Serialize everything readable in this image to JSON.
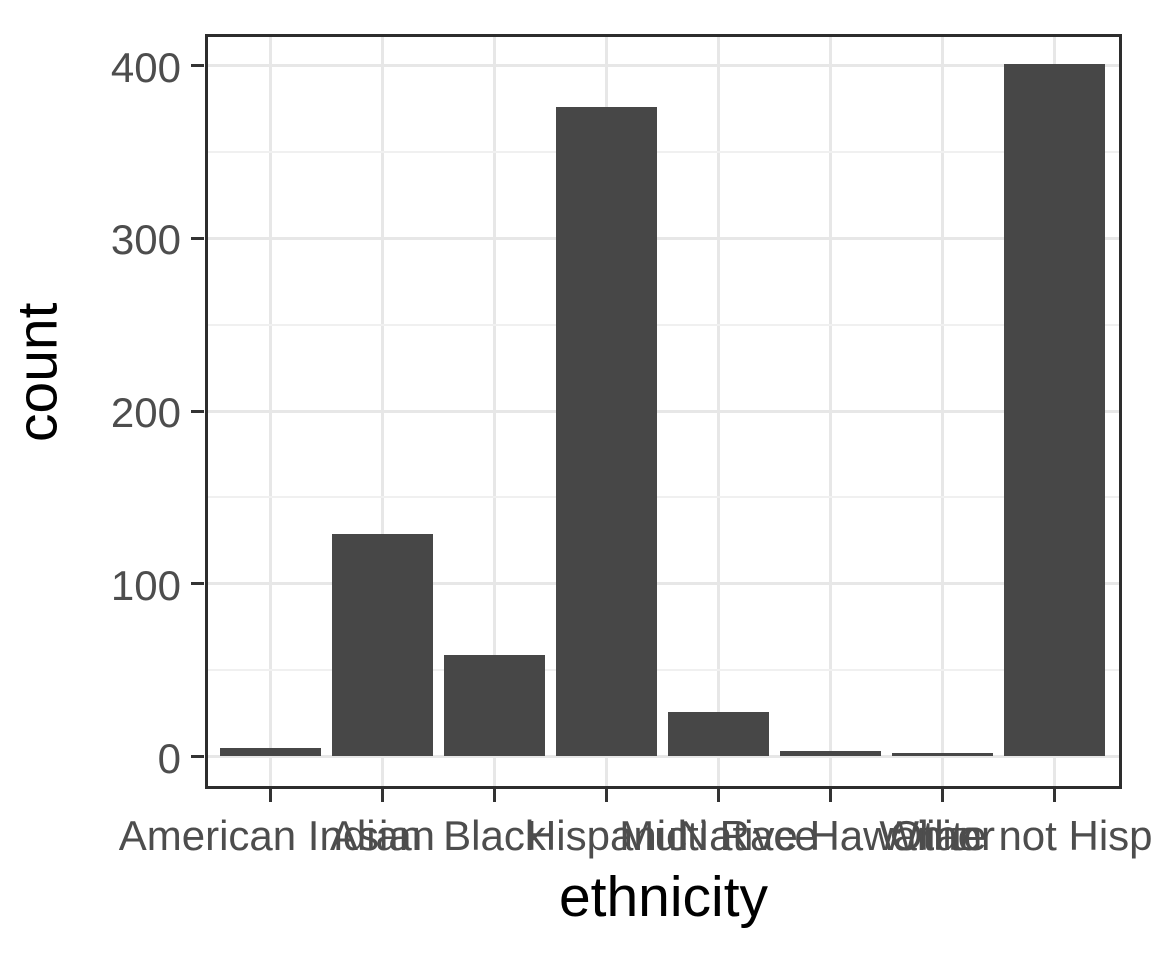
{
  "chart_data": {
    "type": "bar",
    "title": "",
    "xlabel": "ethnicity",
    "ylabel": "count",
    "categories": [
      "American Indian",
      "Asian",
      "Black",
      "Hispanic",
      "Multi Race",
      "Native Hawaiian",
      "Other",
      "White not Hispanic"
    ],
    "values": [
      5,
      129,
      59,
      376,
      26,
      3,
      2,
      401
    ],
    "ylim": [
      0,
      418
    ],
    "yticks": [
      0,
      100,
      200,
      300,
      400
    ],
    "yticks_minor": [
      50,
      150,
      250,
      350
    ],
    "grid": "major and minor horizontal, major vertical at each category",
    "legend": "none",
    "bar_fill": "#474747"
  },
  "style": {
    "background": "#ffffff",
    "panel_background": "#ffffff",
    "panel_border": "#2d2d2d",
    "grid_major": "#e7e7e7",
    "grid_minor": "#f0f0f0",
    "tick_mark": "#333333",
    "axis_text": "#4d4d4d",
    "axis_title": "#000000"
  }
}
